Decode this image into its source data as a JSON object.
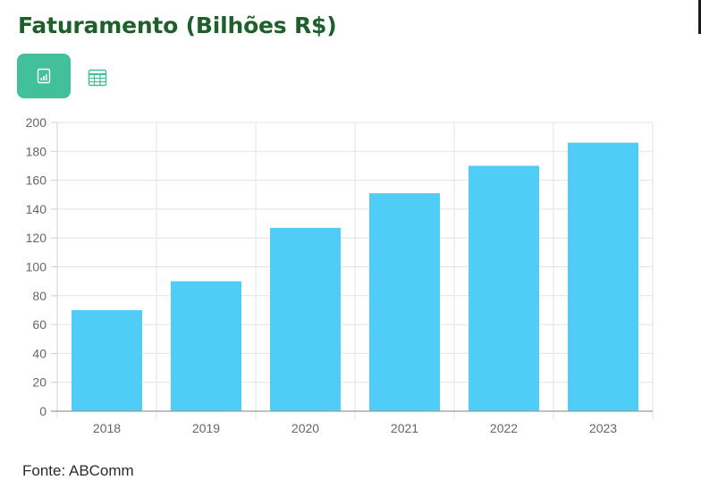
{
  "header": {
    "title": "Faturamento (Bilhões R$)"
  },
  "view_toggle": {
    "chart_icon": "bar-chart-icon",
    "table_icon": "table-icon",
    "active_color": "#41c09a"
  },
  "chart_data": {
    "type": "bar",
    "categories": [
      "2018",
      "2019",
      "2020",
      "2021",
      "2022",
      "2023"
    ],
    "values": [
      70,
      90,
      127,
      151,
      170,
      186
    ],
    "ylim": [
      0,
      200
    ],
    "yticks": [
      "0",
      "20",
      "40",
      "60",
      "80",
      "100",
      "120",
      "140",
      "160",
      "180",
      "200"
    ],
    "grid": true,
    "bar_color": "#4fcdf7"
  },
  "footer": {
    "source": "Fonte: ABComm"
  }
}
